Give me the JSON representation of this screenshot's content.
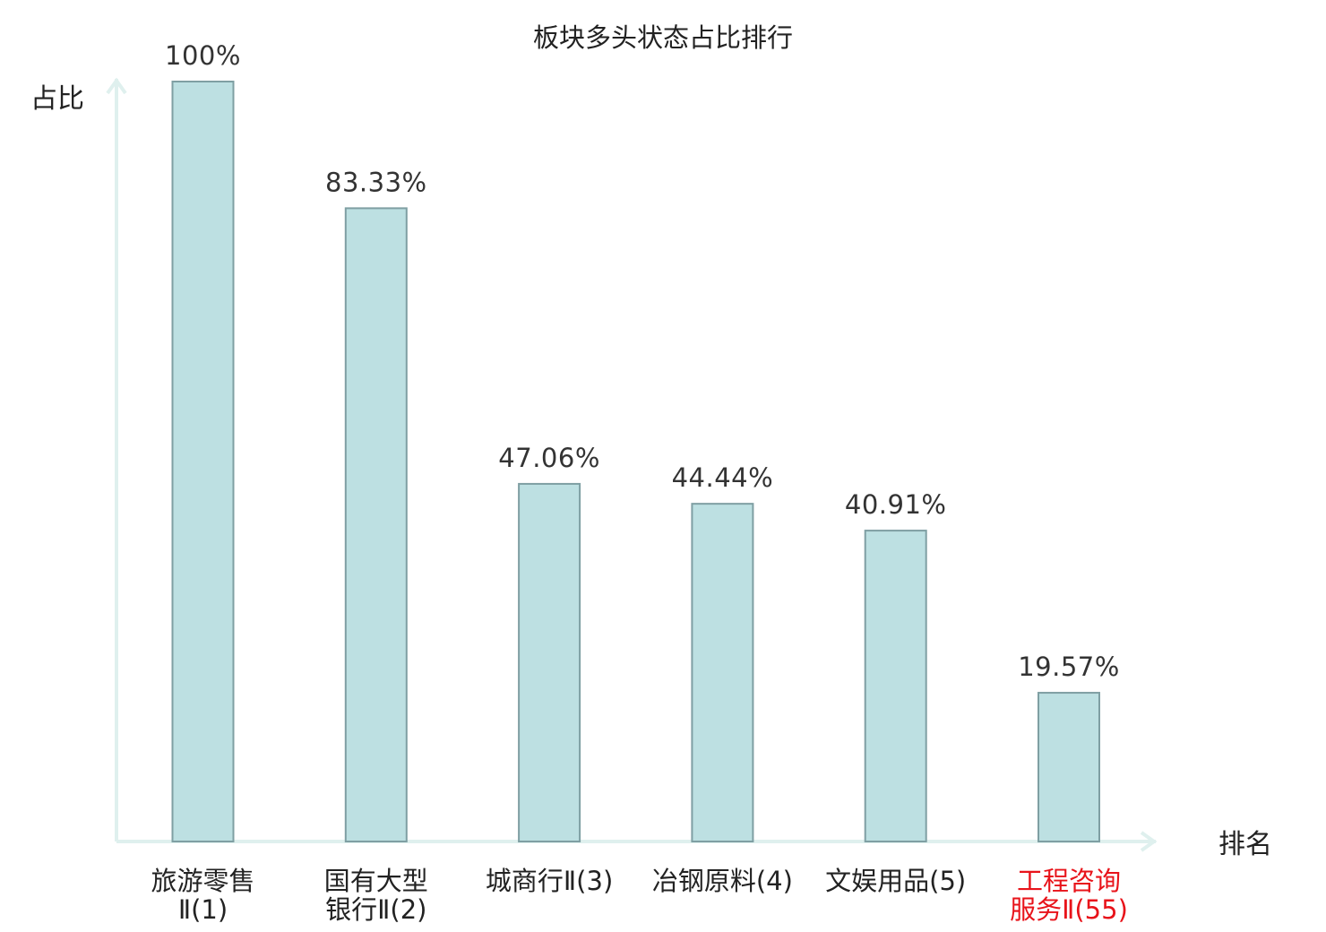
{
  "chart_data": {
    "type": "bar",
    "title": "板块多头状态占比排行",
    "ylabel": "占比",
    "xlabel": "排名",
    "ylim": [
      0,
      100
    ],
    "grid": false,
    "categories": [
      {
        "lines": [
          "旅游零售",
          "Ⅱ(1)"
        ],
        "highlight": false
      },
      {
        "lines": [
          "国有大型",
          "银行Ⅱ(2)"
        ],
        "highlight": false
      },
      {
        "lines": [
          "城商行Ⅱ(3)"
        ],
        "highlight": false
      },
      {
        "lines": [
          "冶钢原料(4)"
        ],
        "highlight": false
      },
      {
        "lines": [
          "文娱用品(5)"
        ],
        "highlight": false
      },
      {
        "lines": [
          "工程咨询",
          "服务Ⅱ(55)"
        ],
        "highlight": true
      }
    ],
    "values": [
      100,
      83.33,
      47.06,
      44.44,
      40.91,
      19.57
    ],
    "value_labels": [
      "100%",
      "83.33%",
      "47.06%",
      "44.44%",
      "40.91%",
      "19.57%"
    ]
  },
  "colors": {
    "bar_fill": "#bde0e2",
    "bar_stroke": "#7f9fa3",
    "axis": "#dff0ee",
    "label_text": "#222222",
    "highlight_text": "#e8131a"
  }
}
